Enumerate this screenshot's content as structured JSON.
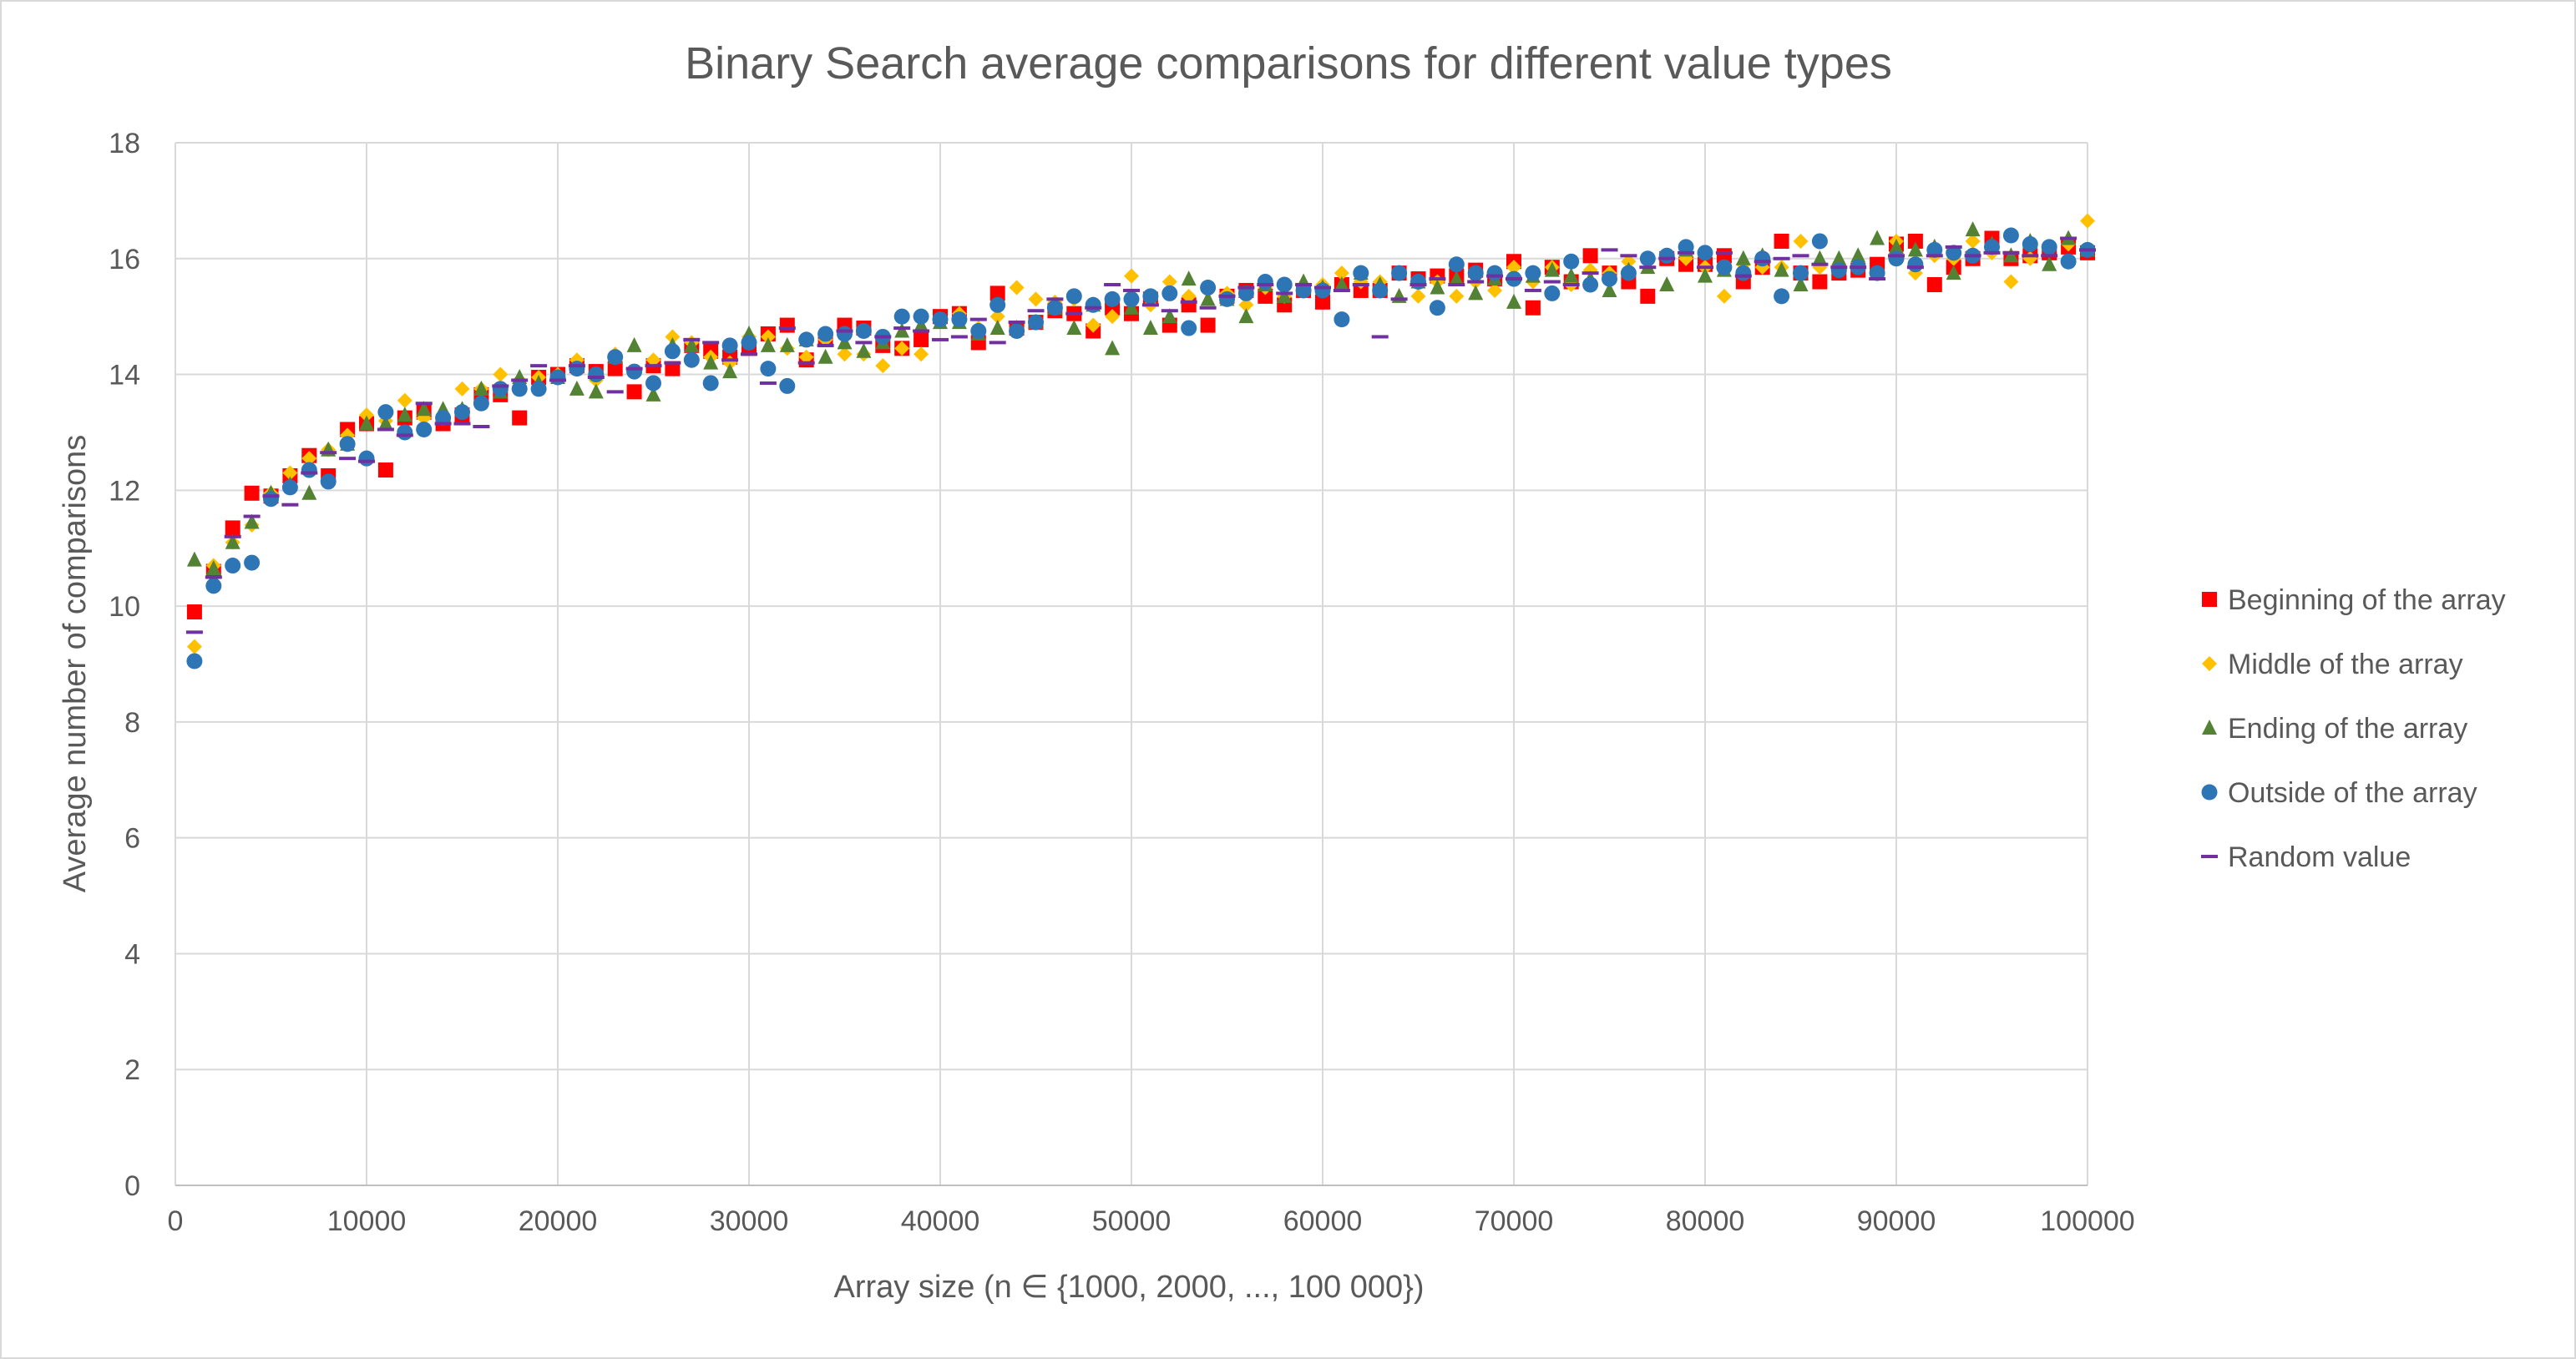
{
  "chart_data": {
    "type": "scatter",
    "title": "Binary Search average comparisons for different value types",
    "xlabel": "Array size (n ∈ {1000, 2000, ..., 100 000})",
    "ylabel": "Average number of comparisons",
    "xlim": [
      0,
      100000
    ],
    "ylim": [
      0,
      18
    ],
    "xticks": [
      0,
      10000,
      20000,
      30000,
      40000,
      50000,
      60000,
      70000,
      80000,
      90000,
      100000
    ],
    "yticks": [
      0,
      2,
      4,
      6,
      8,
      10,
      12,
      14,
      16,
      18
    ],
    "grid": true,
    "legend_position": "right",
    "x": [
      1000,
      2000,
      3000,
      4000,
      5000,
      6000,
      7000,
      8000,
      9000,
      10000,
      11000,
      12000,
      13000,
      14000,
      15000,
      16000,
      17000,
      18000,
      19000,
      20000,
      21000,
      22000,
      23000,
      24000,
      25000,
      26000,
      27000,
      28000,
      29000,
      30000,
      31000,
      32000,
      33000,
      34000,
      35000,
      36000,
      37000,
      38000,
      39000,
      40000,
      41000,
      42000,
      43000,
      44000,
      45000,
      46000,
      47000,
      48000,
      49000,
      50000,
      51000,
      52000,
      53000,
      54000,
      55000,
      56000,
      57000,
      58000,
      59000,
      60000,
      61000,
      62000,
      63000,
      64000,
      65000,
      66000,
      67000,
      68000,
      69000,
      70000,
      71000,
      72000,
      73000,
      74000,
      75000,
      76000,
      77000,
      78000,
      79000,
      80000,
      81000,
      82000,
      83000,
      84000,
      85000,
      86000,
      87000,
      88000,
      89000,
      90000,
      91000,
      92000,
      93000,
      94000,
      95000,
      96000,
      97000,
      98000,
      99000,
      100000
    ],
    "series": [
      {
        "name": "Beginning of the array",
        "marker": "square",
        "color": "#ff0000",
        "values": [
          9.9,
          10.6,
          11.35,
          11.95,
          11.9,
          12.25,
          12.6,
          12.25,
          13.05,
          13.15,
          12.35,
          13.25,
          13.35,
          13.15,
          13.3,
          13.65,
          13.65,
          13.25,
          13.95,
          14.0,
          14.15,
          14.05,
          14.1,
          13.7,
          14.15,
          14.1,
          14.5,
          14.4,
          14.3,
          14.45,
          14.7,
          14.85,
          14.25,
          14.6,
          14.85,
          14.8,
          14.5,
          14.45,
          14.6,
          15.0,
          15.05,
          14.55,
          15.4,
          14.8,
          14.9,
          15.1,
          15.05,
          14.75,
          15.15,
          15.05,
          15.3,
          14.85,
          15.2,
          14.85,
          15.35,
          15.45,
          15.35,
          15.2,
          15.45,
          15.25,
          15.55,
          15.45,
          15.45,
          15.75,
          15.65,
          15.7,
          15.7,
          15.8,
          15.65,
          15.95,
          15.15,
          15.85,
          15.6,
          16.05,
          15.75,
          15.6,
          15.35,
          16.0,
          15.9,
          15.9,
          16.05,
          15.6,
          15.85,
          16.3,
          15.75,
          15.6,
          15.75,
          15.8,
          15.9,
          16.25,
          16.3,
          15.55,
          15.85,
          16.0,
          16.35,
          16.0,
          16.05,
          16.1,
          16.2,
          16.1
        ]
      },
      {
        "name": "Middle of the array",
        "marker": "diamond",
        "color": "#ffc000",
        "values": [
          9.3,
          10.7,
          11.1,
          11.4,
          11.95,
          12.3,
          12.55,
          12.7,
          12.95,
          13.3,
          13.2,
          13.55,
          13.25,
          13.3,
          13.75,
          13.75,
          14.0,
          13.9,
          13.95,
          14.0,
          14.25,
          13.9,
          14.35,
          14.05,
          14.25,
          14.65,
          14.55,
          14.3,
          14.2,
          14.65,
          14.65,
          14.45,
          14.3,
          14.6,
          14.35,
          14.35,
          14.15,
          14.45,
          14.35,
          14.95,
          15.05,
          14.8,
          15.0,
          15.5,
          15.3,
          15.25,
          15.3,
          14.85,
          15.0,
          15.7,
          15.2,
          15.6,
          15.35,
          15.45,
          15.4,
          15.2,
          15.5,
          15.35,
          15.45,
          15.55,
          15.75,
          15.6,
          15.6,
          15.75,
          15.35,
          15.6,
          15.35,
          15.6,
          15.45,
          15.85,
          15.6,
          15.85,
          15.55,
          15.8,
          15.75,
          15.95,
          16.0,
          16.05,
          16.0,
          15.85,
          15.35,
          15.9,
          15.85,
          15.85,
          16.3,
          15.85,
          15.9,
          15.85,
          15.75,
          16.3,
          15.75,
          16.05,
          16.0,
          16.3,
          16.1,
          15.6,
          16.0,
          16.15,
          16.25,
          16.65
        ]
      },
      {
        "name": "Ending of the array",
        "marker": "triangle",
        "color": "#548235",
        "values": [
          10.8,
          10.65,
          11.1,
          11.45,
          11.95,
          12.1,
          11.95,
          12.7,
          12.8,
          13.15,
          13.15,
          13.3,
          13.4,
          13.4,
          13.4,
          13.75,
          13.7,
          13.95,
          13.85,
          13.95,
          13.75,
          13.7,
          14.3,
          14.5,
          13.65,
          14.5,
          14.5,
          14.2,
          14.05,
          14.7,
          14.5,
          14.5,
          14.6,
          14.3,
          14.55,
          14.4,
          14.55,
          14.75,
          14.85,
          14.9,
          14.9,
          14.7,
          14.8,
          14.8,
          14.9,
          15.15,
          14.8,
          15.2,
          14.45,
          15.15,
          14.8,
          15.0,
          15.65,
          15.3,
          15.3,
          15.0,
          15.55,
          15.35,
          15.6,
          15.5,
          15.55,
          15.75,
          15.55,
          15.35,
          15.6,
          15.5,
          15.65,
          15.4,
          15.65,
          15.25,
          15.7,
          15.8,
          15.7,
          15.65,
          15.45,
          15.8,
          15.85,
          15.55,
          16.15,
          15.7,
          15.8,
          16.0,
          16.05,
          15.8,
          15.55,
          16.0,
          16.0,
          16.05,
          16.35,
          16.2,
          16.15,
          16.2,
          15.75,
          16.5,
          16.25,
          16.05,
          16.3,
          15.9,
          16.35,
          16.15
        ]
      },
      {
        "name": "Outside of the array",
        "marker": "circle",
        "color": "#2e75b6",
        "values": [
          9.05,
          10.35,
          10.7,
          10.75,
          11.85,
          12.05,
          12.35,
          12.15,
          12.8,
          12.55,
          13.35,
          13.0,
          13.05,
          13.25,
          13.35,
          13.5,
          13.75,
          13.75,
          13.75,
          13.95,
          14.1,
          14.0,
          14.3,
          14.05,
          13.85,
          14.4,
          14.25,
          13.85,
          14.5,
          14.55,
          14.1,
          13.8,
          14.6,
          14.7,
          14.7,
          14.75,
          14.65,
          15.0,
          15.0,
          14.95,
          14.95,
          14.75,
          15.2,
          14.75,
          14.9,
          15.15,
          15.35,
          15.2,
          15.3,
          15.3,
          15.35,
          15.4,
          14.8,
          15.5,
          15.3,
          15.4,
          15.6,
          15.55,
          15.45,
          15.45,
          14.95,
          15.75,
          15.45,
          15.75,
          15.6,
          15.15,
          15.9,
          15.75,
          15.75,
          15.65,
          15.75,
          15.4,
          15.95,
          15.55,
          15.65,
          15.75,
          16.0,
          16.05,
          16.2,
          16.1,
          15.85,
          15.75,
          16.0,
          15.35,
          15.75,
          16.3,
          15.8,
          15.85,
          15.75,
          16.0,
          15.9,
          16.15,
          16.1,
          16.05,
          16.2,
          16.4,
          16.25,
          16.2,
          15.95,
          16.15
        ]
      },
      {
        "name": "Random value",
        "marker": "dash",
        "color": "#7030a0",
        "values": [
          9.55,
          10.5,
          11.2,
          11.55,
          11.9,
          11.75,
          12.3,
          12.65,
          12.55,
          12.5,
          13.05,
          12.95,
          13.5,
          13.15,
          13.15,
          13.1,
          13.8,
          13.9,
          14.15,
          13.9,
          14.15,
          13.95,
          13.7,
          14.1,
          14.15,
          14.2,
          14.6,
          14.55,
          14.25,
          14.35,
          13.85,
          14.8,
          14.2,
          14.5,
          14.75,
          14.55,
          14.65,
          14.8,
          14.75,
          14.6,
          14.65,
          14.95,
          14.55,
          14.9,
          15.1,
          15.3,
          15.05,
          15.15,
          15.55,
          15.45,
          15.2,
          15.1,
          15.25,
          15.15,
          15.35,
          15.5,
          15.55,
          15.4,
          15.55,
          15.5,
          15.45,
          15.55,
          14.65,
          15.3,
          15.55,
          15.65,
          15.55,
          15.6,
          15.7,
          15.65,
          15.45,
          15.6,
          15.55,
          15.75,
          16.15,
          16.05,
          15.85,
          16.0,
          16.1,
          15.85,
          16.1,
          15.7,
          15.95,
          16.0,
          16.05,
          15.9,
          15.85,
          15.85,
          15.65,
          16.05,
          15.85,
          16.05,
          16.2,
          16.05,
          16.1,
          16.1,
          16.05,
          16.05,
          16.35,
          16.15
        ]
      }
    ]
  }
}
